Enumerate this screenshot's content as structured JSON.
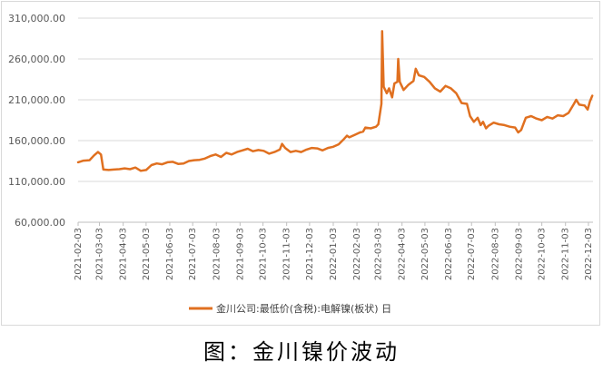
{
  "chart_data": {
    "type": "line",
    "title": "",
    "xlabel": "",
    "ylabel": "",
    "ylim": [
      60000,
      310000
    ],
    "y_ticks": [
      60000,
      110000,
      160000,
      210000,
      260000,
      310000
    ],
    "y_tick_labels": [
      "60,000.00",
      "110,000.00",
      "160,000.00",
      "210,000.00",
      "260,000.00",
      "310,000.00"
    ],
    "x_tick_labels": [
      "2021-02-03",
      "2021-03-03",
      "2021-04-03",
      "2021-05-03",
      "2021-06-03",
      "2021-07-03",
      "2021-08-03",
      "2021-09-03",
      "2021-10-03",
      "2021-11-03",
      "2021-12-03",
      "2022-01-03",
      "2022-02-03",
      "2022-03-03",
      "2022-04-03",
      "2022-05-03",
      "2022-06-03",
      "2022-07-03",
      "2022-08-03",
      "2022-09-03",
      "2022-10-03",
      "2022-11-03",
      "2022-12-03"
    ],
    "legend_position": "bottom",
    "grid": "horizontal",
    "color": "#E07020",
    "series": [
      {
        "name": "金川公司:最低价(含税):电解镍(板状) 日",
        "points": [
          [
            "2021-02-03",
            133500
          ],
          [
            "2021-02-10",
            135500
          ],
          [
            "2021-02-18",
            136000
          ],
          [
            "2021-02-24",
            142000
          ],
          [
            "2021-03-01",
            146000
          ],
          [
            "2021-03-05",
            143000
          ],
          [
            "2021-03-08",
            124500
          ],
          [
            "2021-03-15",
            124000
          ],
          [
            "2021-03-22",
            124500
          ],
          [
            "2021-03-29",
            125000
          ],
          [
            "2021-04-05",
            126000
          ],
          [
            "2021-04-12",
            125000
          ],
          [
            "2021-04-19",
            127000
          ],
          [
            "2021-04-26",
            123000
          ],
          [
            "2021-05-03",
            124000
          ],
          [
            "2021-05-10",
            130000
          ],
          [
            "2021-05-17",
            132000
          ],
          [
            "2021-05-24",
            131000
          ],
          [
            "2021-05-31",
            133500
          ],
          [
            "2021-06-07",
            134000
          ],
          [
            "2021-06-14",
            131500
          ],
          [
            "2021-06-21",
            132000
          ],
          [
            "2021-06-28",
            135000
          ],
          [
            "2021-07-05",
            136000
          ],
          [
            "2021-07-12",
            136500
          ],
          [
            "2021-07-19",
            138000
          ],
          [
            "2021-07-26",
            141000
          ],
          [
            "2021-08-02",
            143000
          ],
          [
            "2021-08-09",
            140000
          ],
          [
            "2021-08-16",
            145000
          ],
          [
            "2021-08-23",
            143000
          ],
          [
            "2021-08-30",
            146000
          ],
          [
            "2021-09-06",
            148000
          ],
          [
            "2021-09-13",
            150000
          ],
          [
            "2021-09-20",
            147000
          ],
          [
            "2021-09-27",
            148500
          ],
          [
            "2021-10-04",
            147500
          ],
          [
            "2021-10-11",
            144000
          ],
          [
            "2021-10-18",
            146000
          ],
          [
            "2021-10-25",
            149000
          ],
          [
            "2021-10-28",
            156000
          ],
          [
            "2021-11-01",
            151000
          ],
          [
            "2021-11-08",
            146000
          ],
          [
            "2021-11-15",
            147500
          ],
          [
            "2021-11-22",
            146000
          ],
          [
            "2021-11-29",
            149000
          ],
          [
            "2021-12-06",
            151000
          ],
          [
            "2021-12-13",
            150500
          ],
          [
            "2021-12-20",
            148000
          ],
          [
            "2021-12-27",
            151000
          ],
          [
            "2022-01-03",
            152500
          ],
          [
            "2022-01-10",
            155500
          ],
          [
            "2022-01-17",
            162000
          ],
          [
            "2022-01-21",
            166000
          ],
          [
            "2022-01-24",
            164000
          ],
          [
            "2022-01-31",
            167000
          ],
          [
            "2022-02-07",
            170000
          ],
          [
            "2022-02-11",
            171000
          ],
          [
            "2022-02-14",
            176000
          ],
          [
            "2022-02-21",
            175000
          ],
          [
            "2022-02-28",
            177000
          ],
          [
            "2022-03-03",
            180000
          ],
          [
            "2022-03-07",
            205000
          ],
          [
            "2022-03-08",
            294000
          ],
          [
            "2022-03-10",
            226000
          ],
          [
            "2022-03-14",
            218000
          ],
          [
            "2022-03-17",
            224000
          ],
          [
            "2022-03-21",
            213000
          ],
          [
            "2022-03-24",
            230000
          ],
          [
            "2022-03-28",
            232000
          ],
          [
            "2022-03-29",
            260000
          ],
          [
            "2022-03-31",
            232000
          ],
          [
            "2022-04-05",
            222000
          ],
          [
            "2022-04-11",
            228000
          ],
          [
            "2022-04-18",
            233000
          ],
          [
            "2022-04-21",
            248000
          ],
          [
            "2022-04-25",
            240000
          ],
          [
            "2022-05-02",
            238000
          ],
          [
            "2022-05-09",
            232000
          ],
          [
            "2022-05-16",
            224000
          ],
          [
            "2022-05-23",
            220000
          ],
          [
            "2022-05-30",
            227000
          ],
          [
            "2022-06-06",
            224000
          ],
          [
            "2022-06-13",
            218000
          ],
          [
            "2022-06-20",
            206000
          ],
          [
            "2022-06-27",
            205000
          ],
          [
            "2022-07-01",
            190000
          ],
          [
            "2022-07-06",
            183000
          ],
          [
            "2022-07-11",
            188000
          ],
          [
            "2022-07-15",
            179000
          ],
          [
            "2022-07-18",
            183000
          ],
          [
            "2022-07-22",
            175000
          ],
          [
            "2022-07-25",
            178000
          ],
          [
            "2022-08-01",
            182000
          ],
          [
            "2022-08-08",
            180000
          ],
          [
            "2022-08-15",
            179000
          ],
          [
            "2022-08-22",
            177000
          ],
          [
            "2022-08-29",
            176000
          ],
          [
            "2022-09-02",
            170000
          ],
          [
            "2022-09-06",
            173000
          ],
          [
            "2022-09-12",
            188000
          ],
          [
            "2022-09-19",
            190000
          ],
          [
            "2022-09-26",
            187000
          ],
          [
            "2022-10-03",
            185000
          ],
          [
            "2022-10-10",
            189000
          ],
          [
            "2022-10-17",
            187000
          ],
          [
            "2022-10-24",
            191000
          ],
          [
            "2022-10-31",
            190000
          ],
          [
            "2022-11-07",
            194000
          ],
          [
            "2022-11-14",
            205000
          ],
          [
            "2022-11-17",
            210000
          ],
          [
            "2022-11-21",
            204000
          ],
          [
            "2022-11-28",
            203000
          ],
          [
            "2022-12-02",
            198000
          ],
          [
            "2022-12-05",
            208000
          ],
          [
            "2022-12-08",
            215000
          ]
        ]
      }
    ]
  },
  "caption": "图：金川镍价波动"
}
